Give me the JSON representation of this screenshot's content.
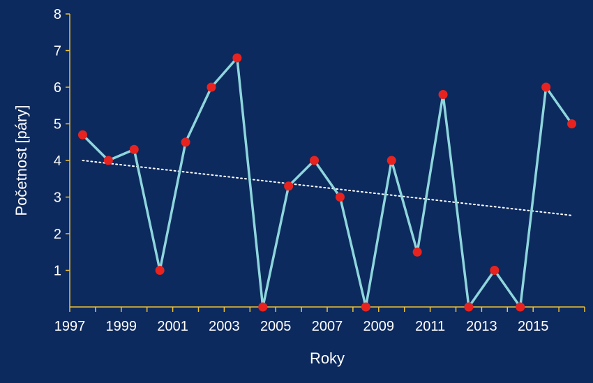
{
  "chart_data": {
    "type": "line",
    "title": "",
    "xlabel": "Roky",
    "ylabel": "Početnost [páry]",
    "x": [
      1997,
      1998,
      1999,
      2000,
      2001,
      2002,
      2003,
      2004,
      2005,
      2006,
      2007,
      2008,
      2009,
      2010,
      2011,
      2012,
      2013,
      2014,
      2015,
      2016
    ],
    "series": [
      {
        "values": [
          4.7,
          4.0,
          4.3,
          1.0,
          4.5,
          6.0,
          6.8,
          0.0,
          3.3,
          4.0,
          3.0,
          0.0,
          4.0,
          1.5,
          5.8,
          0.0,
          1.0,
          0.0,
          6.0,
          5.0
        ]
      }
    ],
    "trendline": {
      "style": "dotted",
      "start": [
        1997,
        4.0
      ],
      "end": [
        2016,
        2.5
      ]
    },
    "xlim": [
      1996.5,
      2016.5
    ],
    "ylim": [
      0,
      8
    ],
    "xtick_labels": [
      "1997",
      "1999",
      "2001",
      "2003",
      "2005",
      "2007",
      "2009",
      "2011",
      "2013",
      "2015"
    ],
    "ytick_labels": [
      "1",
      "2",
      "3",
      "4",
      "5",
      "6",
      "7",
      "8"
    ],
    "grid": false,
    "colors": {
      "background": "#0d2a5e",
      "axis": "#f2c230",
      "line": "#8ed6dc",
      "marker": "#e8231f",
      "trendline": "#ffffff",
      "text": "#ffffff"
    }
  }
}
